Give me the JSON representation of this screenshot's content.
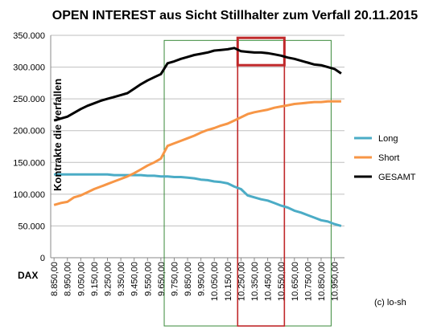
{
  "chart_data": {
    "type": "line",
    "title": "OPEN INTEREST aus Sicht Stillhalter zum Verfall 20.11.2015",
    "ylabel": "Kontrakte die verfallen",
    "xlabel": "DAX",
    "credit": "(c) lo-sh",
    "ylim": [
      0,
      350000
    ],
    "yticks": [
      "0",
      "50.000",
      "100.000",
      "150.000",
      "200.000",
      "250.000",
      "300.000",
      "350.000"
    ],
    "x": [
      8850,
      8900,
      8950,
      9000,
      9050,
      9100,
      9150,
      9200,
      9250,
      9300,
      9350,
      9400,
      9450,
      9500,
      9550,
      9600,
      9650,
      9700,
      9750,
      9800,
      9850,
      9900,
      9950,
      10000,
      10050,
      10100,
      10150,
      10200,
      10250,
      10300,
      10350,
      10400,
      10450,
      10500,
      10550,
      10600,
      10650,
      10700,
      10750,
      10800,
      10850,
      10900,
      10950,
      11000
    ],
    "xticklabels": [
      "8.850,00",
      "8.950,00",
      "9.050,00",
      "9.150,00",
      "9.250,00",
      "9.350,00",
      "9.450,00",
      "9.550,00",
      "9.650,00",
      "9.750,00",
      "9.850,00",
      "9.950,00",
      "10.050,00",
      "10.150,00",
      "10.250,00",
      "10.350,00",
      "10.450,00",
      "10.550,00",
      "10.650,00",
      "10.750,00",
      "10.850,00",
      "10.950,00"
    ],
    "series": [
      {
        "name": "Long",
        "color": "#4bacc6",
        "values": [
          131000,
          131000,
          131000,
          131000,
          131000,
          131000,
          131000,
          131000,
          131000,
          130000,
          130000,
          130000,
          130000,
          130000,
          129000,
          129000,
          128000,
          128000,
          127000,
          127000,
          126000,
          125000,
          123000,
          122000,
          120000,
          119000,
          117000,
          112000,
          108000,
          98000,
          95000,
          92000,
          90000,
          86000,
          82000,
          79000,
          74000,
          71000,
          67000,
          63000,
          59000,
          57000,
          53000,
          50000
        ]
      },
      {
        "name": "Short",
        "color": "#f79646",
        "values": [
          83000,
          86000,
          88000,
          95000,
          98000,
          103000,
          108000,
          112000,
          116000,
          120000,
          124000,
          128000,
          133000,
          139000,
          145000,
          150000,
          156000,
          176000,
          180000,
          184000,
          188000,
          192000,
          197000,
          201000,
          204000,
          208000,
          211000,
          216000,
          221000,
          226000,
          229000,
          231000,
          233000,
          236000,
          238000,
          240000,
          242000,
          243000,
          244000,
          245000,
          245000,
          246000,
          246000,
          246000
        ]
      },
      {
        "name": "GESAMT",
        "color": "#000000",
        "values": [
          216000,
          219000,
          222000,
          228000,
          234000,
          239000,
          243000,
          247000,
          250000,
          253000,
          256000,
          259000,
          266000,
          273000,
          279000,
          284000,
          289000,
          306000,
          309000,
          313000,
          316000,
          319000,
          321000,
          323000,
          326000,
          327000,
          328000,
          330000,
          325000,
          324000,
          323000,
          323000,
          322000,
          320000,
          318000,
          315000,
          313000,
          310000,
          307000,
          304000,
          303000,
          300000,
          297000,
          290000
        ]
      }
    ],
    "highlights": [
      {
        "color": "#3a8a3a",
        "x_start": 9675,
        "x_end": 10925,
        "y_top": 342000
      },
      {
        "color": "#c0282a",
        "x_start": 10225,
        "x_end": 10575,
        "y_top": 346000,
        "box_bottom": 303000
      }
    ],
    "legend_position": "right"
  }
}
